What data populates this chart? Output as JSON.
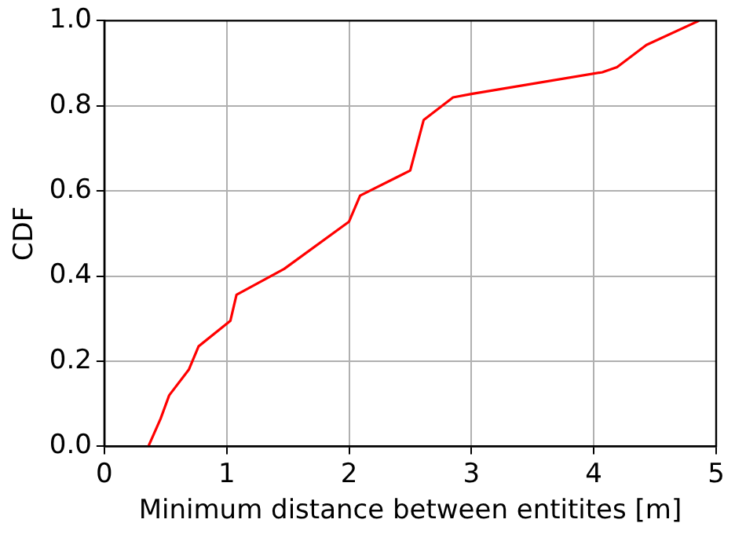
{
  "chart_data": {
    "type": "line",
    "xlabel": "Minimum distance between entitites [m]",
    "ylabel": "CDF",
    "series": [
      {
        "color": "#ff0000",
        "x": [
          0.36,
          0.46,
          0.53,
          0.69,
          0.77,
          1.03,
          1.08,
          1.47,
          2.0,
          2.09,
          2.5,
          2.61,
          2.85,
          3.0,
          4.07,
          4.19,
          4.43,
          4.86
        ],
        "values": [
          0,
          0.065,
          0.12,
          0.18,
          0.235,
          0.295,
          0.356,
          0.417,
          0.528,
          0.589,
          0.648,
          0.767,
          0.82,
          0.828,
          0.879,
          0.891,
          0.943,
          1.0
        ]
      }
    ],
    "xlim": [
      0,
      5
    ],
    "xticks": [
      0,
      1,
      2,
      3,
      4,
      5
    ],
    "ylim": [
      0,
      1
    ],
    "yticks": [
      {
        "value": 0,
        "label": "0.0"
      },
      {
        "value": 0.2,
        "label": "0.2"
      },
      {
        "value": 0.4,
        "label": "0.4"
      },
      {
        "value": 0.6,
        "label": "0.6"
      },
      {
        "value": 0.8,
        "label": "0.8"
      },
      {
        "value": 1,
        "label": "1.0"
      }
    ],
    "grid": true,
    "legend": false,
    "marker": "none",
    "line_style": "solid"
  }
}
